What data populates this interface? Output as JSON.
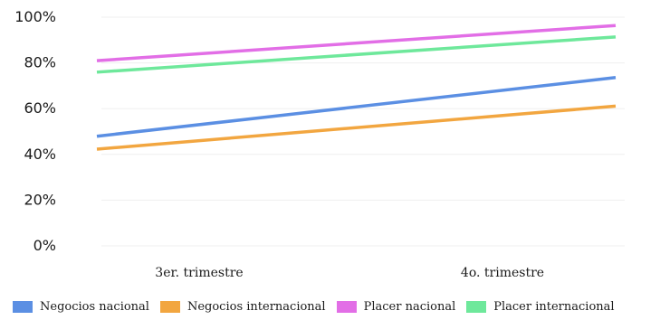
{
  "chart_data": {
    "type": "line",
    "categories": [
      "3er. trimestre",
      "4o. trimestre"
    ],
    "y_ticks": [
      "0%",
      "20%",
      "40%",
      "60%",
      "80%",
      "100%"
    ],
    "ylim": [
      0,
      100
    ],
    "grid": true,
    "legend_position": "bottom",
    "series": [
      {
        "name": "Negocios nacional",
        "values": [
          53,
          68
        ],
        "color": "#5b8fe3"
      },
      {
        "name": "Negocios internacional",
        "values": [
          46,
          57
        ],
        "color": "#f2a640"
      },
      {
        "name": "Placer nacional",
        "values": [
          84,
          93
        ],
        "color": "#e26ee6"
      },
      {
        "name": "Placer internacional",
        "values": [
          79,
          88
        ],
        "color": "#6ee89b"
      }
    ]
  }
}
